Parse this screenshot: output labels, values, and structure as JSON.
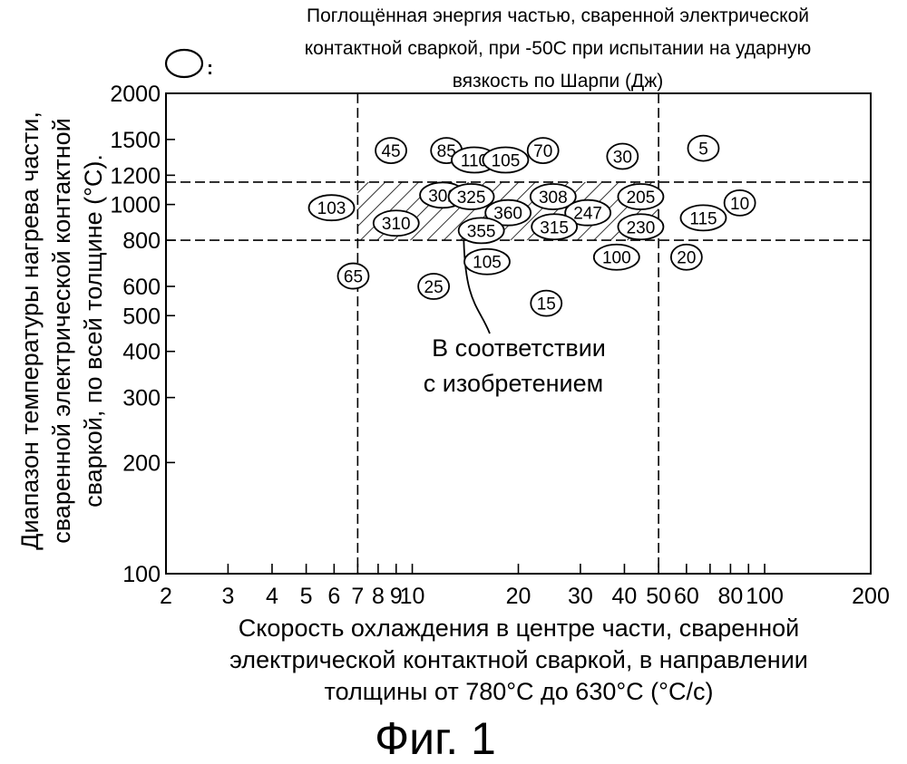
{
  "chart_data": {
    "type": "scatter",
    "x_scale": "log",
    "y_scale": "log",
    "xlim": [
      2,
      200
    ],
    "ylim": [
      100,
      2000
    ],
    "grid": false,
    "title_lines": [
      "Поглощённая энергия частью, сваренной электрической",
      "контактной сваркой, при -50С при испытании на ударную",
      "вязкость по Шарпи (Дж)"
    ],
    "legend_symbol_suffix": ":",
    "xlabel_lines": [
      "Скорость охлаждения в центре части, сваренной",
      "электрической контактной сваркой, в направлении",
      "толщины от 780°C до 630°C (°C/c)"
    ],
    "ylabel_lines": [
      "Диапазон температуры нагрева части,",
      "сваренной электрической контактной",
      "сваркой, по всей толщине (°C)."
    ],
    "x_ticks": [
      {
        "value": 2,
        "label": "2"
      },
      {
        "value": 3,
        "label": "3"
      },
      {
        "value": 4,
        "label": "4"
      },
      {
        "value": 5,
        "label": "5"
      },
      {
        "value": 6,
        "label": "6"
      },
      {
        "value": 7,
        "label": "7"
      },
      {
        "value": 8,
        "label": "8"
      },
      {
        "value": 9,
        "label": "9"
      },
      {
        "value": 10,
        "label": "10"
      },
      {
        "value": 20,
        "label": "20"
      },
      {
        "value": 30,
        "label": "30"
      },
      {
        "value": 40,
        "label": "40"
      },
      {
        "value": 50,
        "label": "50"
      },
      {
        "value": 60,
        "label": "60"
      },
      {
        "value": 80,
        "label": "80"
      },
      {
        "value": 100,
        "label": "100"
      },
      {
        "value": 200,
        "label": "200"
      }
    ],
    "x_minor_ticks": [
      70,
      90
    ],
    "y_ticks": [
      {
        "value": 100,
        "label": "100"
      },
      {
        "value": 200,
        "label": "200"
      },
      {
        "value": 300,
        "label": "300"
      },
      {
        "value": 400,
        "label": "400"
      },
      {
        "value": 500,
        "label": "500"
      },
      {
        "value": 600,
        "label": "600"
      },
      {
        "value": 800,
        "label": "800"
      },
      {
        "value": 1000,
        "label": "1000"
      },
      {
        "value": 1200,
        "label": "1200"
      },
      {
        "value": 1500,
        "label": "1500"
      },
      {
        "value": 2000,
        "label": "2000"
      }
    ],
    "reference_lines": {
      "x": [
        7,
        50
      ],
      "y": [
        800,
        1150
      ]
    },
    "region": {
      "x": [
        7,
        50
      ],
      "y": [
        800,
        1150
      ],
      "fill": "hatched"
    },
    "annotation": {
      "lines": [
        "В соответствии",
        "с изобретением"
      ],
      "x": 28,
      "y": 420,
      "pointer_to": {
        "x": 14,
        "y": 800
      }
    },
    "points": [
      {
        "x": 8.7,
        "y": 1400,
        "label": "45"
      },
      {
        "x": 12.5,
        "y": 1400,
        "label": "85"
      },
      {
        "x": 15.0,
        "y": 1320,
        "label": "110"
      },
      {
        "x": 18.4,
        "y": 1320,
        "label": "105"
      },
      {
        "x": 23.5,
        "y": 1400,
        "label": "70"
      },
      {
        "x": 39.5,
        "y": 1350,
        "label": "30"
      },
      {
        "x": 67.0,
        "y": 1420,
        "label": "5"
      },
      {
        "x": 5.9,
        "y": 980,
        "label": "103"
      },
      {
        "x": 12.2,
        "y": 1060,
        "label": "302"
      },
      {
        "x": 14.7,
        "y": 1050,
        "label": "325"
      },
      {
        "x": 25.1,
        "y": 1050,
        "label": "308"
      },
      {
        "x": 44.5,
        "y": 1050,
        "label": "205"
      },
      {
        "x": 85.0,
        "y": 1010,
        "label": "10"
      },
      {
        "x": 9.0,
        "y": 890,
        "label": "310"
      },
      {
        "x": 18.7,
        "y": 950,
        "label": "360"
      },
      {
        "x": 31.5,
        "y": 950,
        "label": "247"
      },
      {
        "x": 15.7,
        "y": 850,
        "label": "355"
      },
      {
        "x": 25.3,
        "y": 870,
        "label": "315"
      },
      {
        "x": 44.5,
        "y": 870,
        "label": "230"
      },
      {
        "x": 67.0,
        "y": 920,
        "label": "115"
      },
      {
        "x": 6.8,
        "y": 640,
        "label": "65"
      },
      {
        "x": 11.5,
        "y": 600,
        "label": "25"
      },
      {
        "x": 16.3,
        "y": 700,
        "label": "105"
      },
      {
        "x": 38.0,
        "y": 720,
        "label": "100"
      },
      {
        "x": 60.0,
        "y": 720,
        "label": "20"
      },
      {
        "x": 24.0,
        "y": 540,
        "label": "15"
      }
    ]
  },
  "caption": "Фиг. 1"
}
